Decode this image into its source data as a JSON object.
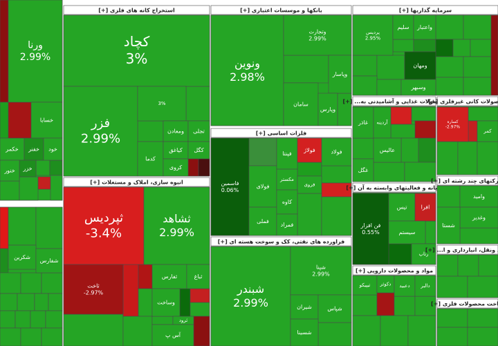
{
  "chart_data": {
    "type": "treemap",
    "sectors": [
      {
        "labels": [
          "ورنا",
          "خسابا",
          "خکمر",
          "خفنر",
          "خود",
          "خزر",
          "خنور"
        ],
        "values": [
          2.99,
          null,
          null,
          null,
          null,
          null,
          null
        ],
        "value_labels": [
          "2.99%",
          null,
          null,
          null,
          null,
          null,
          null
        ],
        "colors": [
          "#25a525",
          "#25a525",
          "#25a525",
          "#1e8e1e",
          "#25a525",
          "#1e8e1e",
          "#25a525"
        ]
      },
      {
        "labels": [
          "شکرین",
          "شفارس"
        ],
        "values": [
          null,
          null
        ],
        "value_labels": [
          null,
          null
        ],
        "colors": [
          "#25a525",
          "#25a525"
        ]
      },
      {
        "title": "استخراج کانه های فلزی [+]",
        "labels": [
          "کچاد",
          "فزر",
          null,
          "ومعادن",
          "تجلی",
          "کدما",
          "کیاغق",
          "کروی",
          "کگل"
        ],
        "values": [
          3,
          2.99,
          3,
          null,
          null,
          null,
          null,
          null,
          null
        ],
        "value_labels": [
          "3%",
          "2.99%",
          "3%",
          null,
          null,
          null,
          null,
          null,
          null
        ],
        "colors": [
          "#25a525",
          "#25a525",
          "#25a525",
          "#25a525",
          "#25a525",
          "#25a525",
          "#25a525",
          "#25a525",
          "#25a525"
        ]
      },
      {
        "title": "انبوه سازی، املاک و مستغلات [+]",
        "labels": [
          "ثپردیس",
          "ثشاهد",
          "ثاخت",
          "ثفارس",
          "ثباغ",
          "وساخت",
          "ثرود",
          "آس پ"
        ],
        "values": [
          -3.4,
          2.99,
          -2.97,
          null,
          null,
          null,
          null,
          null
        ],
        "value_labels": [
          "-3.4%",
          "2.99%",
          "-2.97%",
          null,
          null,
          null,
          null,
          null
        ],
        "colors": [
          "#d81e1e",
          "#25a525",
          "#a01414",
          "#25a525",
          "#25a525",
          "#25a525",
          "#25a525",
          "#25a525"
        ]
      },
      {
        "title": "بانکها و موسسات اعتباری [+]",
        "labels": [
          "ونوین",
          "وتجارت",
          "وپاسار",
          "سامان",
          "وپارس"
        ],
        "values": [
          2.98,
          2.99,
          null,
          null,
          null
        ],
        "value_labels": [
          "2.98%",
          "2.99%",
          null,
          null,
          null
        ],
        "colors": [
          "#25a525",
          "#25a525",
          "#25a525",
          "#25a525",
          "#25a525"
        ]
      },
      {
        "title": "فلزات اساسی [+]",
        "labels": [
          "فاسمین",
          "فولای",
          "فملی",
          "فپنتا",
          "فولاژ",
          "فولاد",
          "مکستر",
          "فروی",
          "کاوه",
          "فمراد"
        ],
        "values": [
          0.06,
          null,
          null,
          null,
          null,
          null,
          null,
          null,
          null,
          null
        ],
        "value_labels": [
          "0.06%",
          null,
          null,
          null,
          null,
          null,
          null,
          null,
          null,
          null
        ],
        "colors": [
          "#0b5e0b",
          "#25a525",
          "#25a525",
          "#25a525",
          "#d32020",
          "#25a525",
          "#25a525",
          "#25a525",
          "#25a525",
          "#25a525"
        ]
      },
      {
        "title": "فراورده های نفتی، کک و سوخت هسته ای [+]",
        "labels": [
          "شبندر",
          "شپنا",
          "شیران",
          "شپاس",
          "شسینا"
        ],
        "values": [
          2.99,
          2.99,
          null,
          null,
          null
        ],
        "value_labels": [
          "2.99%",
          "2.99%",
          null,
          null,
          null
        ],
        "colors": [
          "#25a525",
          "#25a525",
          "#25a525",
          "#25a525",
          "#25a525"
        ]
      },
      {
        "title": "سرمایه گذاریها [+]",
        "labels": [
          "پردیس",
          "سلیم",
          "واعتبار",
          "ومهان",
          "وسبهر"
        ],
        "values": [
          2.95,
          null,
          null,
          null,
          null
        ],
        "value_labels": [
          "2.95%",
          null,
          null,
          null,
          null
        ],
        "colors": [
          "#25a525",
          "#25a525",
          "#25a525",
          "#0b5e0b",
          "#25a525"
        ]
      },
      {
        "title": "محصولات غذایی و آشامیدنی به... [+]",
        "labels": [
          "غاذر",
          "آردینه",
          "عالیس",
          "غگل"
        ],
        "values": [
          null,
          null,
          null,
          null
        ],
        "value_labels": [
          null,
          null,
          null,
          null
        ],
        "colors": [
          "#25a525",
          "#25a525",
          "#25a525",
          "#25a525"
        ]
      },
      {
        "title": "محصولات کانی غیرفلزی [+]",
        "labels": [
          "کساره",
          "کمر"
        ],
        "values": [
          -2.97,
          null
        ],
        "value_labels": [
          "-2.97%",
          null
        ],
        "colors": [
          "#d32020",
          "#25a525"
        ]
      },
      {
        "title": "رایانه و فعالیتهای وابسته به آن [+]",
        "labels": [
          "فن افزار",
          "تیس",
          "افرا",
          "سیستم",
          "رتاپ"
        ],
        "values": [
          0.55,
          null,
          null,
          null,
          null
        ],
        "value_labels": [
          "0.55%",
          null,
          null,
          null,
          null
        ],
        "colors": [
          "#0b5e0b",
          "#25a525",
          "#c42020",
          "#25a525",
          "#25a525"
        ]
      },
      {
        "title": "شرکتهای چند رشته ای [+]",
        "labels": [
          "وامید",
          "وغدیر",
          "شستا"
        ],
        "values": [
          null,
          null,
          null
        ],
        "value_labels": [
          null,
          null,
          null
        ],
        "colors": [
          "#25a525",
          "#25a525",
          "#25a525"
        ]
      },
      {
        "title": "حمل ونقل، انبارداری و ا... [+]",
        "labels": [],
        "values": [],
        "value_labels": [],
        "colors": []
      },
      {
        "title": "مواد و محصولات دارویی [+]",
        "labels": [
          "تیپیکو",
          "دکوثر",
          "دعبید",
          "دالبر"
        ],
        "values": [
          null,
          null,
          null,
          null
        ],
        "value_labels": [
          null,
          null,
          null,
          null
        ],
        "colors": [
          "#25a525",
          "#25a525",
          "#25a525",
          "#25a525"
        ]
      },
      {
        "title": "ساخت محصولات فلزی [+]",
        "labels": [],
        "values": [],
        "value_labels": [],
        "colors": []
      }
    ]
  }
}
